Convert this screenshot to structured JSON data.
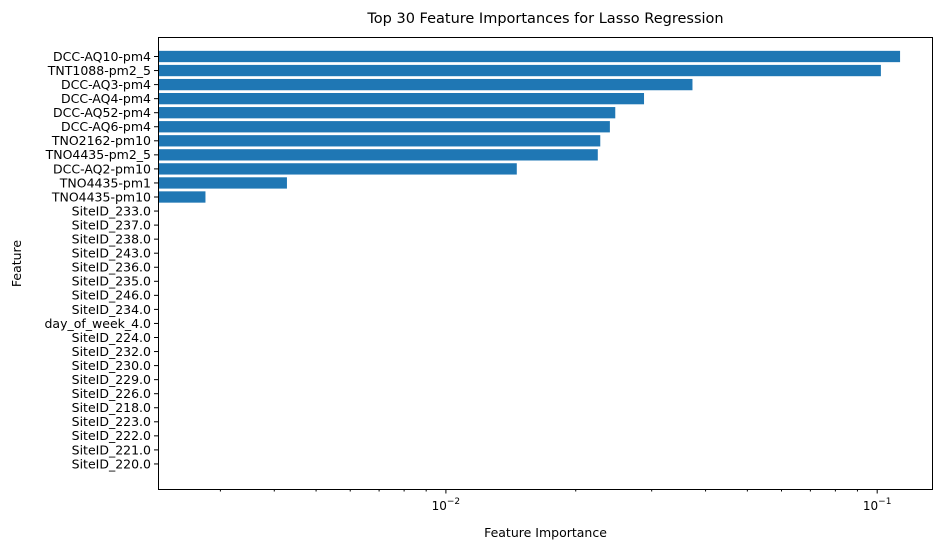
{
  "chart_data": {
    "type": "bar",
    "orientation": "horizontal",
    "title": "Top 30 Feature Importances for Lasso Regression",
    "xlabel": "Feature Importance",
    "ylabel": "Feature",
    "x_scale": "log",
    "xlim": [
      0.00215,
      0.134
    ],
    "x_major_ticks": [
      {
        "value": 0.01,
        "base": "10",
        "exp": "−2"
      },
      {
        "value": 0.1,
        "base": "10",
        "exp": "−1"
      }
    ],
    "bar_color": "#1f77b4",
    "grid": false,
    "legend": "none",
    "categories": [
      "DCC-AQ10-pm4",
      "TNT1088-pm2_5",
      "DCC-AQ3-pm4",
      "DCC-AQ4-pm4",
      "DCC-AQ52-pm4",
      "DCC-AQ6-pm4",
      "TNO2162-pm10",
      "TNO4435-pm2_5",
      "DCC-AQ2-pm10",
      "TNO4435-pm1",
      "TNO4435-pm10",
      "SiteID_233.0",
      "SiteID_237.0",
      "SiteID_238.0",
      "SiteID_243.0",
      "SiteID_236.0",
      "SiteID_235.0",
      "SiteID_246.0",
      "SiteID_234.0",
      "day_of_week_4.0",
      "SiteID_224.0",
      "SiteID_232.0",
      "SiteID_230.0",
      "SiteID_229.0",
      "SiteID_226.0",
      "SiteID_218.0",
      "SiteID_223.0",
      "SiteID_222.0",
      "SiteID_221.0",
      "SiteID_220.0"
    ],
    "values": [
      0.113,
      0.102,
      0.0373,
      0.0288,
      0.0247,
      0.024,
      0.0228,
      0.0225,
      0.0146,
      0.00428,
      0.00277,
      0,
      0,
      0,
      0,
      0,
      0,
      0,
      0,
      0,
      0,
      0,
      0,
      0,
      0,
      0,
      0,
      0,
      0,
      0
    ]
  }
}
